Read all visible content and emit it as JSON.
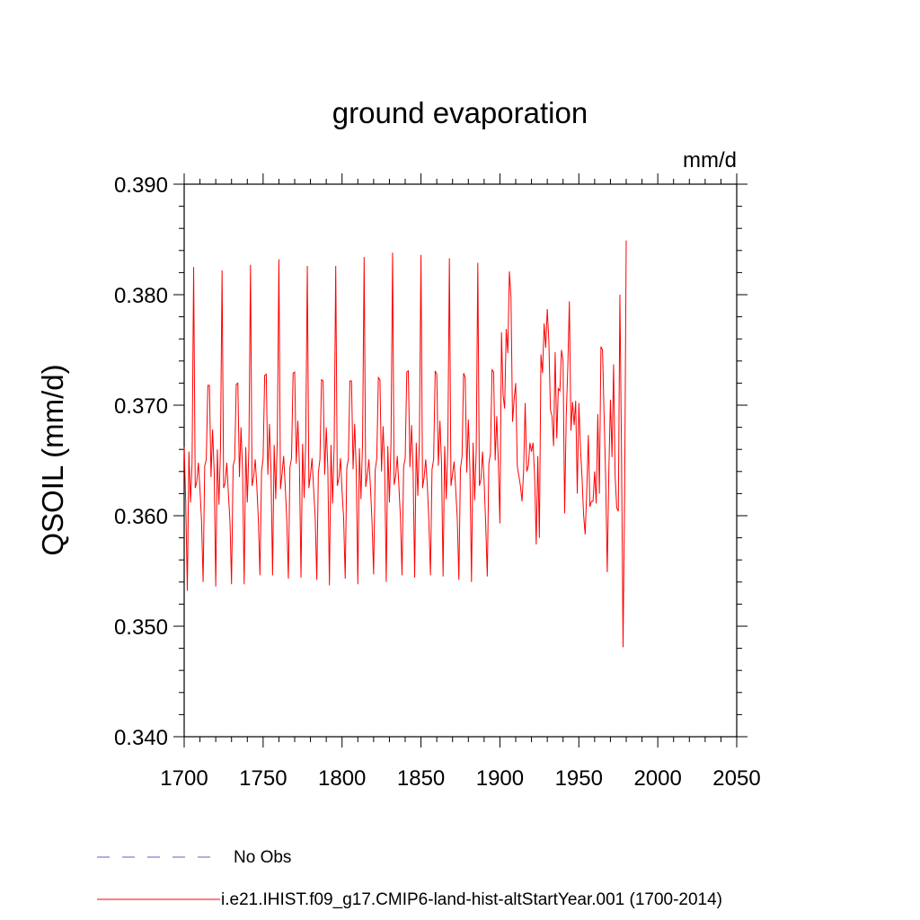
{
  "chart_data": {
    "type": "line",
    "title": "ground evaporation",
    "units": "mm/d",
    "ylabel": "QSOIL  (mm/d)",
    "xlabel": "",
    "xlim": [
      1700,
      2050
    ],
    "ylim": [
      0.34,
      0.39
    ],
    "x_ticks": [
      1700,
      1750,
      1800,
      1850,
      1900,
      1950,
      2000,
      2050
    ],
    "x_tick_labels": [
      "1700",
      "1750",
      "1800",
      "1850",
      "1900",
      "1950",
      "2000",
      "2050"
    ],
    "y_ticks": [
      0.34,
      0.35,
      0.36,
      0.37,
      0.38,
      0.39
    ],
    "y_tick_labels": [
      "0.340",
      "0.350",
      "0.360",
      "0.370",
      "0.380",
      "0.390"
    ],
    "grid": false,
    "legend_position": "bottom",
    "legend": [
      {
        "label": "No Obs",
        "color": "#6a5acd",
        "style": "dashed"
      },
      {
        "label": "i.e21.IHIST.f09_g17.CMIP6-land-hist-altStartYear.001 (1700-2014)",
        "color": "#ff0000",
        "style": "solid"
      }
    ],
    "series": [
      {
        "name": "i.e21.IHIST.f09_g17.CMIP6-land-hist-altStartYear.001 (1700-2014)",
        "color": "#ff0000",
        "x_start": 1700,
        "x_step": 1,
        "values": [
          0.3662,
          0.3612,
          0.3532,
          0.3658,
          0.3612,
          0.3648,
          0.3825,
          0.3625,
          0.3631,
          0.3648,
          0.3624,
          0.3595,
          0.354,
          0.3645,
          0.3651,
          0.3718,
          0.3718,
          0.3635,
          0.3678,
          0.364,
          0.3536,
          0.366,
          0.361,
          0.366,
          0.3822,
          0.3625,
          0.363,
          0.3648,
          0.362,
          0.3595,
          0.3538,
          0.3645,
          0.3651,
          0.3719,
          0.372,
          0.3635,
          0.368,
          0.364,
          0.3538,
          0.3662,
          0.3612,
          0.3661,
          0.3827,
          0.3627,
          0.3635,
          0.3651,
          0.3627,
          0.3596,
          0.3546,
          0.364,
          0.3652,
          0.3727,
          0.3728,
          0.3637,
          0.3683,
          0.364,
          0.3546,
          0.3664,
          0.3615,
          0.367,
          0.3832,
          0.3624,
          0.3638,
          0.3654,
          0.3627,
          0.3596,
          0.3543,
          0.3644,
          0.3652,
          0.3729,
          0.373,
          0.3647,
          0.3686,
          0.3646,
          0.3544,
          0.3665,
          0.3616,
          0.3667,
          0.3826,
          0.3625,
          0.3637,
          0.3652,
          0.3624,
          0.3598,
          0.3542,
          0.3639,
          0.3651,
          0.3723,
          0.3722,
          0.3637,
          0.368,
          0.3643,
          0.3537,
          0.3664,
          0.3611,
          0.3663,
          0.3826,
          0.3627,
          0.3634,
          0.3652,
          0.3622,
          0.3598,
          0.3543,
          0.3643,
          0.3651,
          0.3722,
          0.3722,
          0.3642,
          0.3683,
          0.3641,
          0.3538,
          0.3661,
          0.3615,
          0.3667,
          0.3834,
          0.3626,
          0.3637,
          0.3651,
          0.3626,
          0.3594,
          0.3547,
          0.3641,
          0.3652,
          0.3725,
          0.3723,
          0.364,
          0.3681,
          0.3644,
          0.354,
          0.3663,
          0.3612,
          0.3665,
          0.3838,
          0.3628,
          0.3636,
          0.3654,
          0.3627,
          0.3598,
          0.3546,
          0.3644,
          0.3652,
          0.373,
          0.3731,
          0.3644,
          0.3682,
          0.3642,
          0.3544,
          0.3666,
          0.3618,
          0.3668,
          0.3836,
          0.3625,
          0.3635,
          0.3651,
          0.3628,
          0.3595,
          0.3546,
          0.3642,
          0.3651,
          0.3731,
          0.3728,
          0.3645,
          0.3686,
          0.3648,
          0.3545,
          0.3663,
          0.3615,
          0.3662,
          0.3833,
          0.3627,
          0.3638,
          0.3649,
          0.3624,
          0.3597,
          0.3542,
          0.3643,
          0.3653,
          0.3729,
          0.3725,
          0.3639,
          0.3687,
          0.3642,
          0.354,
          0.3666,
          0.3614,
          0.366,
          0.3829,
          0.3627,
          0.3633,
          0.3658,
          0.3631,
          0.3592,
          0.3545,
          0.3647,
          0.3656,
          0.3732,
          0.373,
          0.365,
          0.369,
          0.3648,
          0.3593,
          0.3766,
          0.3709,
          0.3697,
          0.3769,
          0.3747,
          0.3821,
          0.3798,
          0.3685,
          0.3705,
          0.372,
          0.3645,
          0.3636,
          0.3627,
          0.3613,
          0.364,
          0.3702,
          0.364,
          0.3645,
          0.3666,
          0.3658,
          0.3666,
          0.3635,
          0.3574,
          0.3654,
          0.358,
          0.3746,
          0.3729,
          0.3774,
          0.3752,
          0.3787,
          0.3758,
          0.3696,
          0.369,
          0.3663,
          0.3748,
          0.367,
          0.3715,
          0.3713,
          0.375,
          0.374,
          0.3602,
          0.369,
          0.3734,
          0.3794,
          0.3677,
          0.3703,
          0.3682,
          0.3704,
          0.362,
          0.3702,
          0.3662,
          0.3635,
          0.3601,
          0.3583,
          0.3622,
          0.3673,
          0.3608,
          0.3613,
          0.3613,
          0.364,
          0.3611,
          0.3692,
          0.362,
          0.3753,
          0.375,
          0.369,
          0.3632,
          0.3549,
          0.364,
          0.3705,
          0.3653,
          0.3737,
          0.3635,
          0.3607,
          0.3604,
          0.38,
          0.366,
          0.3481,
          0.362,
          0.3849
        ]
      }
    ]
  }
}
